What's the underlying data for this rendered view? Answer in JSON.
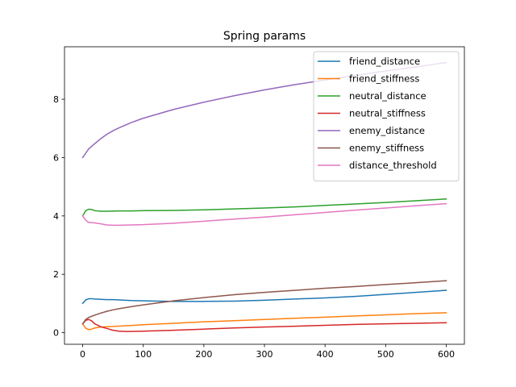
{
  "chart_data": {
    "type": "line",
    "title": "Spring params",
    "xlabel": "",
    "ylabel": "",
    "xlim": [
      -30,
      630
    ],
    "ylim": [
      -0.4,
      9.8
    ],
    "xticks": [
      0,
      100,
      200,
      300,
      400,
      500,
      600
    ],
    "yticks": [
      0,
      2,
      4,
      6,
      8
    ],
    "grid": false,
    "legend_position": "top-right",
    "series": [
      {
        "name": "friend_distance",
        "color": "#1f77b4",
        "x": [
          0,
          5,
          10,
          15,
          20,
          30,
          40,
          50,
          60,
          80,
          100,
          150,
          200,
          250,
          300,
          350,
          400,
          450,
          500,
          550,
          600
        ],
        "y": [
          1.0,
          1.12,
          1.16,
          1.16,
          1.15,
          1.14,
          1.13,
          1.13,
          1.12,
          1.1,
          1.09,
          1.07,
          1.07,
          1.08,
          1.11,
          1.15,
          1.19,
          1.24,
          1.31,
          1.38,
          1.45
        ]
      },
      {
        "name": "friend_stiffness",
        "color": "#ff7f0e",
        "x": [
          0,
          5,
          10,
          15,
          20,
          30,
          40,
          50,
          75,
          100,
          150,
          200,
          250,
          300,
          350,
          400,
          450,
          500,
          550,
          600
        ],
        "y": [
          0.3,
          0.15,
          0.1,
          0.12,
          0.16,
          0.19,
          0.2,
          0.21,
          0.24,
          0.27,
          0.32,
          0.37,
          0.41,
          0.45,
          0.49,
          0.53,
          0.57,
          0.61,
          0.65,
          0.68
        ]
      },
      {
        "name": "neutral_distance",
        "color": "#2ca02c",
        "x": [
          0,
          5,
          10,
          15,
          20,
          30,
          40,
          60,
          80,
          100,
          150,
          200,
          250,
          300,
          350,
          400,
          450,
          500,
          550,
          600
        ],
        "y": [
          4.0,
          4.18,
          4.23,
          4.22,
          4.18,
          4.16,
          4.16,
          4.17,
          4.17,
          4.18,
          4.19,
          4.21,
          4.24,
          4.27,
          4.31,
          4.36,
          4.41,
          4.46,
          4.52,
          4.58
        ]
      },
      {
        "name": "neutral_stiffness",
        "color": "#d62728",
        "x": [
          0,
          5,
          10,
          15,
          20,
          30,
          40,
          50,
          60,
          70,
          80,
          100,
          150,
          200,
          250,
          300,
          350,
          400,
          450,
          500,
          550,
          600
        ],
        "y": [
          0.3,
          0.42,
          0.45,
          0.4,
          0.3,
          0.2,
          0.14,
          0.08,
          0.05,
          0.04,
          0.04,
          0.05,
          0.08,
          0.12,
          0.16,
          0.19,
          0.22,
          0.25,
          0.28,
          0.3,
          0.32,
          0.34
        ]
      },
      {
        "name": "enemy_distance",
        "color": "#9467bd",
        "x": [
          0,
          5,
          10,
          20,
          30,
          40,
          50,
          60,
          80,
          100,
          150,
          200,
          250,
          300,
          350,
          400,
          450,
          500,
          550,
          600
        ],
        "y": [
          6.0,
          6.15,
          6.3,
          6.48,
          6.65,
          6.8,
          6.92,
          7.02,
          7.2,
          7.35,
          7.65,
          7.9,
          8.12,
          8.32,
          8.5,
          8.66,
          8.82,
          8.97,
          9.11,
          9.26
        ]
      },
      {
        "name": "enemy_stiffness",
        "color": "#8c564b",
        "x": [
          0,
          5,
          10,
          20,
          30,
          40,
          50,
          60,
          80,
          100,
          150,
          200,
          250,
          300,
          350,
          400,
          450,
          500,
          550,
          600
        ],
        "y": [
          0.3,
          0.45,
          0.52,
          0.6,
          0.67,
          0.73,
          0.78,
          0.82,
          0.89,
          0.95,
          1.09,
          1.2,
          1.3,
          1.38,
          1.45,
          1.52,
          1.58,
          1.65,
          1.71,
          1.78
        ]
      },
      {
        "name": "distance_threshold",
        "color": "#e377c2",
        "x": [
          0,
          5,
          10,
          15,
          20,
          30,
          40,
          50,
          60,
          80,
          100,
          150,
          200,
          250,
          300,
          350,
          400,
          450,
          500,
          550,
          600
        ],
        "y": [
          4.0,
          3.85,
          3.78,
          3.77,
          3.76,
          3.73,
          3.69,
          3.68,
          3.68,
          3.69,
          3.7,
          3.75,
          3.82,
          3.89,
          3.96,
          4.04,
          4.12,
          4.2,
          4.27,
          4.35,
          4.42
        ]
      }
    ]
  }
}
